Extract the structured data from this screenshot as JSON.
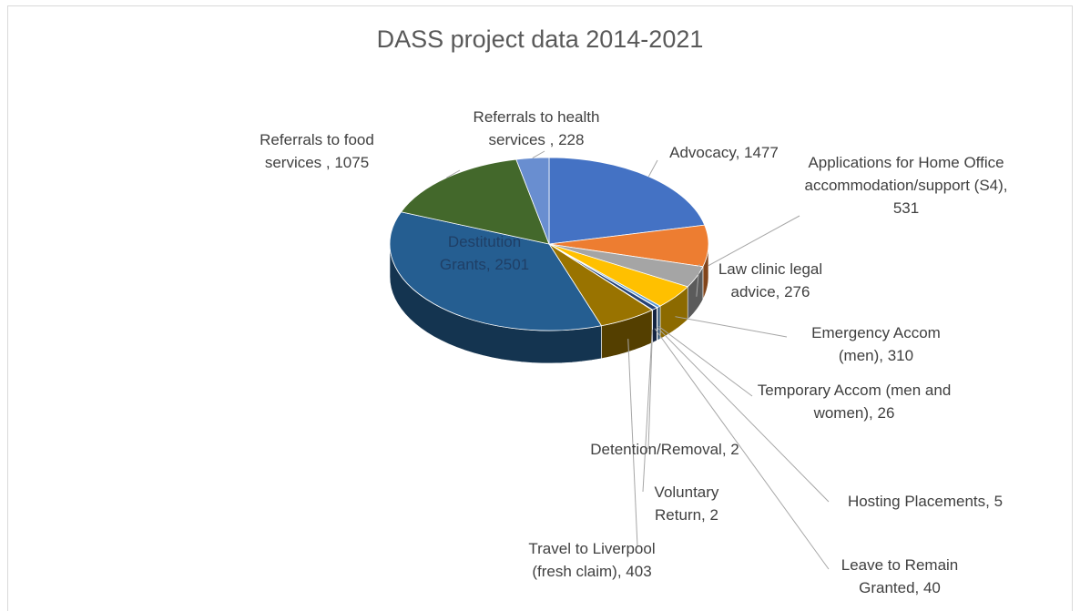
{
  "chart_data": {
    "type": "pie",
    "title": "DASS project data 2014-2021",
    "categories": [
      "Advocacy",
      "Applications for Home Office accommodation/support (S4)",
      "Law clinic legal advice",
      "Emergency Accom (men)",
      "Temporary Accom (men and women)",
      "Hosting Placements",
      "Leave to Remain Granted",
      "Detention/Removal",
      "Voluntary Return",
      "Travel to Liverpool (fresh claim)",
      "Destitution Grants",
      "Referrals to food services",
      "Referrals to health services"
    ],
    "values": [
      1477,
      531,
      276,
      310,
      26,
      5,
      40,
      2,
      2,
      403,
      2501,
      1075,
      228
    ],
    "value_labels": [
      "Advocacy, 1477",
      "Applications for Home Office accommodation/support (S4), 531",
      "Law clinic legal advice, 276",
      "Emergency Accom (men), 310",
      "Temporary Accom (men and women), 26",
      "Hosting Placements, 5",
      "Leave to Remain Granted, 40",
      "Detention/Removal, 2",
      "Voluntary Return, 2",
      "Travel to Liverpool (fresh claim), 403",
      "Destitution Grants, 2501",
      "Referrals to food services , 1075",
      "Referrals to health services , 228"
    ],
    "colors": [
      "#4472c4",
      "#ed7d31",
      "#a5a5a5",
      "#ffc000",
      "#5b9bd5",
      "#70ad47",
      "#264478",
      "#9e480e",
      "#636363",
      "#997300",
      "#255e91",
      "#43682b",
      "#698ed0"
    ]
  }
}
